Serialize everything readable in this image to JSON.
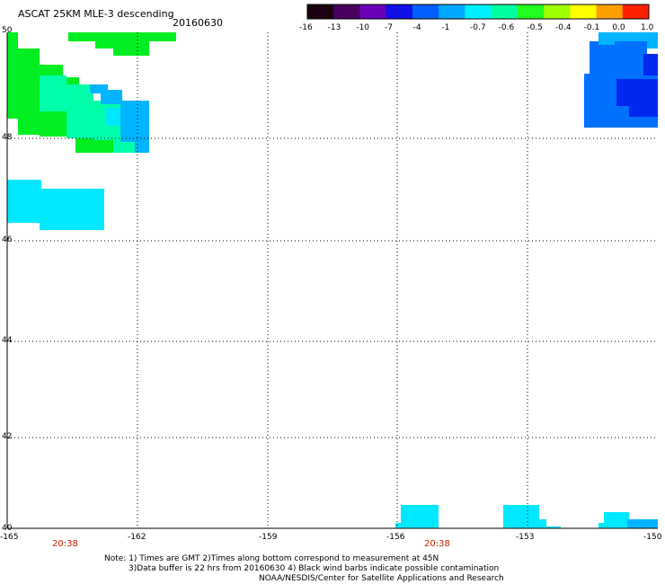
{
  "header": {
    "title": "ASCAT 25KM MLE-3 descending",
    "date": "20160630"
  },
  "colorbar": {
    "labels": [
      "-16",
      "-13",
      "-10",
      "-7",
      "-4",
      "-1",
      "-0.7",
      "-0.6",
      "-0.5",
      "-0.4",
      "-0.1",
      "0.0",
      "1.0"
    ],
    "colors": [
      "#1a0010",
      "#4a0060",
      "#6a00b8",
      "#1010e8",
      "#0060ff",
      "#00a8ff",
      "#00f0ff",
      "#00ffa0",
      "#20ff20",
      "#a0ff00",
      "#ffff00",
      "#ffa000",
      "#ff2000"
    ]
  },
  "axes": {
    "lat_labels": [
      "50",
      "48",
      "46",
      "44",
      "42",
      "40"
    ],
    "lon_labels": [
      "-165",
      "-162",
      "-159",
      "-156",
      "-153",
      "-150"
    ],
    "times": [
      "20:38",
      "20:38"
    ]
  },
  "palette": {
    "green": "#00ee22",
    "aqua_green": "#00ffaa",
    "cyan": "#00e8ff",
    "sky": "#00b4ff",
    "blue": "#0070ff",
    "deep_blue": "#0028f0",
    "grid": "#000000"
  },
  "notes": {
    "line1": "Note: 1) Times are GMT 2)Times along bottom correspond to measurement at 45N",
    "line2": "3)Data buffer is 22 hrs from 20160630 4) Black wind barbs indicate possible contamination",
    "line3": "NOAA/NESDIS/Center for Satellite Applications and Research"
  }
}
